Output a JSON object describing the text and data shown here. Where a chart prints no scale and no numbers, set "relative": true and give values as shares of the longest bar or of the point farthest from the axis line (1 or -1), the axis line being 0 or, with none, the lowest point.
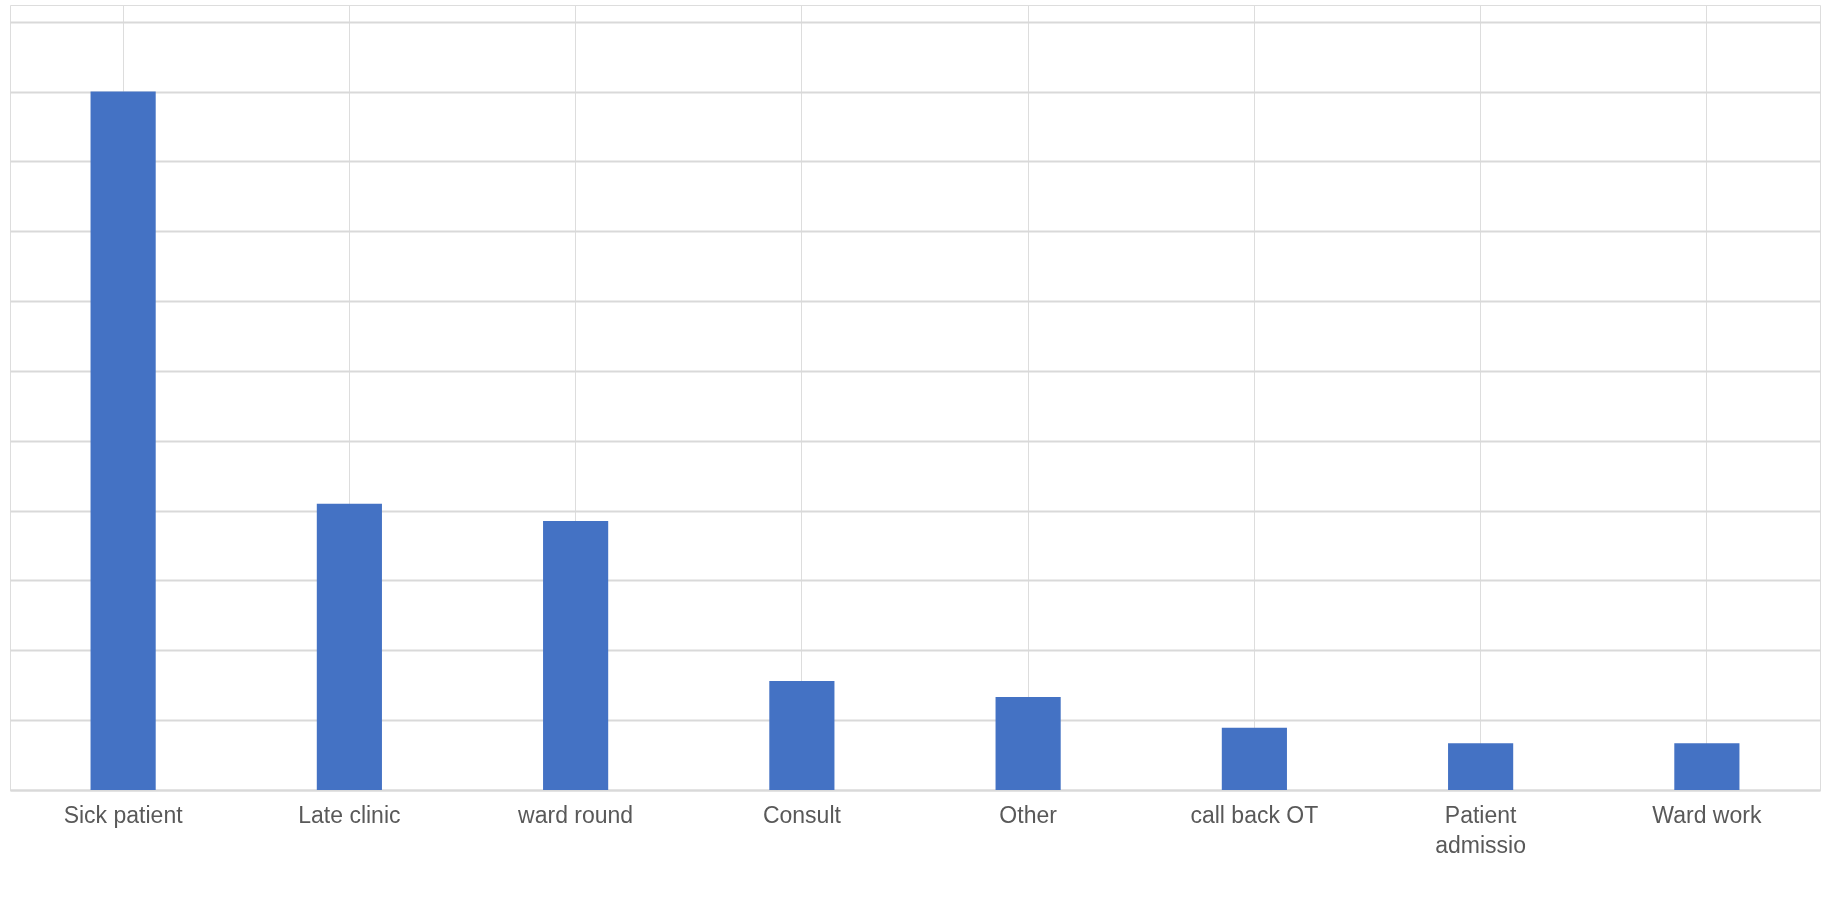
{
  "chart_data": {
    "type": "bar",
    "relative": true,
    "categories": [
      "Sick patient",
      "Late clinic",
      "ward round",
      "Consult",
      "Other",
      "call back OT",
      "Patient admissio",
      "Ward work"
    ],
    "values": [
      1,
      0.41,
      0.385,
      0.156,
      0.133,
      0.089,
      0.067,
      0.067
    ],
    "color": "#4472c4",
    "grid": true
  }
}
